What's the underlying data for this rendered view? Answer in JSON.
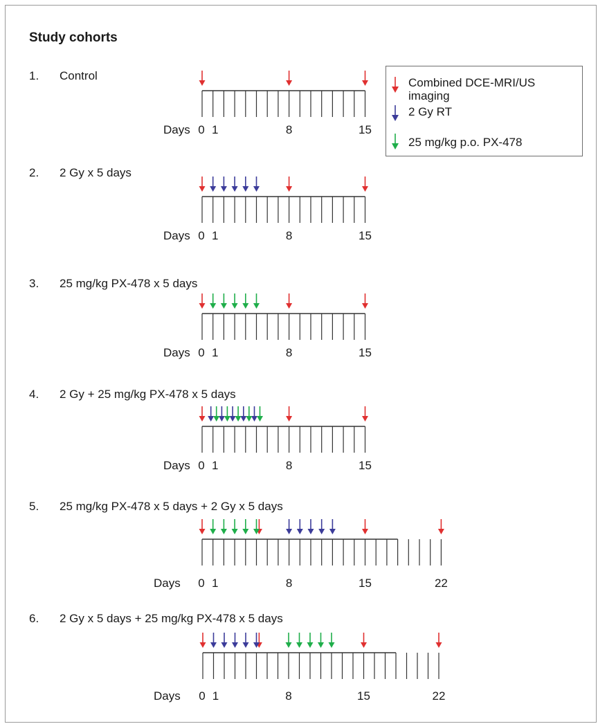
{
  "title": "Study cohorts",
  "axis_prefix": "Days",
  "colors": {
    "imaging": "#e03030",
    "rt": "#3c3c9a",
    "drug": "#1fae4a",
    "axis": "#333333"
  },
  "legend": [
    {
      "label": "Combined DCE-MRI/US imaging",
      "line1": "Combined DCE-MRI/US",
      "line2": "imaging",
      "color": "imaging"
    },
    {
      "label": "2 Gy RT",
      "color": "rt"
    },
    {
      "label": "25 mg/kg p.o. PX-478",
      "color": "drug"
    }
  ],
  "cohorts": [
    {
      "number": "1.",
      "name": "Control",
      "days": 15,
      "tick_labels": [
        "0",
        "1",
        "8",
        "15"
      ],
      "imaging": [
        0,
        8,
        15
      ],
      "rt": [],
      "drug": []
    },
    {
      "number": "2.",
      "name": "2 Gy x 5 days",
      "days": 15,
      "tick_labels": [
        "0",
        "1",
        "8",
        "15"
      ],
      "imaging": [
        0,
        8,
        15
      ],
      "rt": [
        1,
        2,
        3,
        4,
        5
      ],
      "drug": []
    },
    {
      "number": "3.",
      "name": "25 mg/kg PX-478 x 5 days",
      "days": 15,
      "tick_labels": [
        "0",
        "1",
        "8",
        "15"
      ],
      "imaging": [
        0,
        8,
        15
      ],
      "rt": [],
      "drug": [
        1,
        2,
        3,
        4,
        5
      ]
    },
    {
      "number": "4.",
      "name": "2 Gy + 25 mg/kg PX-478 x 5 days",
      "days": 15,
      "tick_labels": [
        "0",
        "1",
        "8",
        "15"
      ],
      "imaging": [
        0,
        8,
        15
      ],
      "rt": [
        1,
        2,
        3,
        4,
        5
      ],
      "drug": [
        1,
        2,
        3,
        4,
        5
      ]
    },
    {
      "number": "5.",
      "name": "25 mg/kg PX-478 x 5 days + 2 Gy x 5 days",
      "days": 22,
      "tick_labels": [
        "0",
        "1",
        "8",
        "15",
        "22"
      ],
      "imaging": [
        0,
        15,
        22
      ],
      "imaging_extra": [
        6
      ],
      "rt": [
        8,
        9,
        10,
        11,
        12
      ],
      "drug": [
        1,
        2,
        3,
        4,
        5
      ]
    },
    {
      "number": "6.",
      "name": "2 Gy x 5 days + 25 mg/kg PX-478 x 5 days",
      "days": 22,
      "tick_labels": [
        "0",
        "1",
        "8",
        "15",
        "22"
      ],
      "imaging": [
        0,
        15,
        22
      ],
      "imaging_extra": [
        6
      ],
      "rt": [
        1,
        2,
        3,
        4,
        5
      ],
      "drug": [
        8,
        9,
        10,
        11,
        12
      ]
    }
  ]
}
